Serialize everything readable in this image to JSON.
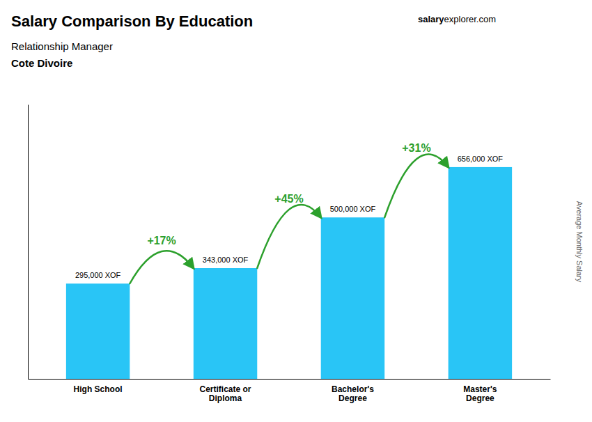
{
  "chart_data": {
    "type": "bar",
    "title": "Salary Comparison By Education",
    "subtitle": [
      "Relationship Manager",
      "Cote Divoire"
    ],
    "watermark": [
      "salary",
      "explorer.com"
    ],
    "ylabel": "Average Monthly Salary",
    "categories": [
      "High School",
      "Certificate or\nDiploma",
      "Bachelor's\nDegree",
      "Master's\nDegree"
    ],
    "values": [
      295000,
      343000,
      500000,
      656000
    ],
    "value_labels": [
      "295,000 XOF",
      "343,000 XOF",
      "500,000 XOF",
      "656,000 XOF"
    ],
    "data_labels": true,
    "annotations": [
      "+17%",
      "+45%",
      "+31%"
    ],
    "color": "#29c5f6",
    "ylim": [
      0,
      850000
    ],
    "tick_labels": "x",
    "grid": false
  }
}
